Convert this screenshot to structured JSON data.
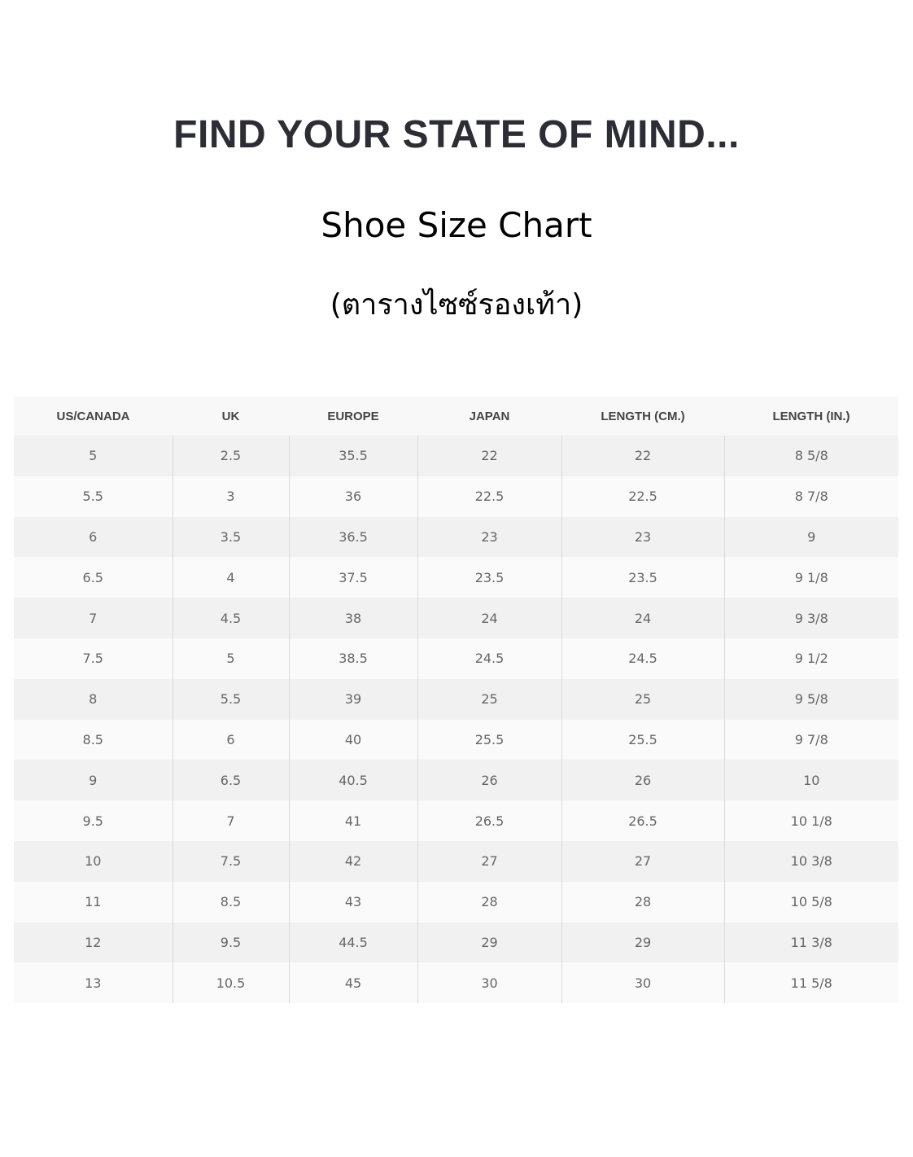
{
  "brand": "FIND YOUR STATE OF MIND...",
  "title": "Shoe Size Chart",
  "subtitle": "(ตารางไซซ์รองเท้า)",
  "table": {
    "headers": [
      "US/CANADA",
      "UK",
      "EUROPE",
      "JAPAN",
      "LENGTH (CM.)",
      "LENGTH (IN.)"
    ],
    "rows": [
      [
        "5",
        "2.5",
        "35.5",
        "22",
        "22",
        "8 5/8"
      ],
      [
        "5.5",
        "3",
        "36",
        "22.5",
        "22.5",
        "8 7/8"
      ],
      [
        "6",
        "3.5",
        "36.5",
        "23",
        "23",
        "9"
      ],
      [
        "6.5",
        "4",
        "37.5",
        "23.5",
        "23.5",
        "9 1/8"
      ],
      [
        "7",
        "4.5",
        "38",
        "24",
        "24",
        "9 3/8"
      ],
      [
        "7.5",
        "5",
        "38.5",
        "24.5",
        "24.5",
        "9 1/2"
      ],
      [
        "8",
        "5.5",
        "39",
        "25",
        "25",
        "9 5/8"
      ],
      [
        "8.5",
        "6",
        "40",
        "25.5",
        "25.5",
        "9 7/8"
      ],
      [
        "9",
        "6.5",
        "40.5",
        "26",
        "26",
        "10"
      ],
      [
        "9.5",
        "7",
        "41",
        "26.5",
        "26.5",
        "10 1/8"
      ],
      [
        "10",
        "7.5",
        "42",
        "27",
        "27",
        "10 3/8"
      ],
      [
        "11",
        "8.5",
        "43",
        "28",
        "28",
        "10 5/8"
      ],
      [
        "12",
        "9.5",
        "44.5",
        "29",
        "29",
        "11 3/8"
      ],
      [
        "13",
        "10.5",
        "45",
        "30",
        "30",
        "11 5/8"
      ]
    ]
  }
}
